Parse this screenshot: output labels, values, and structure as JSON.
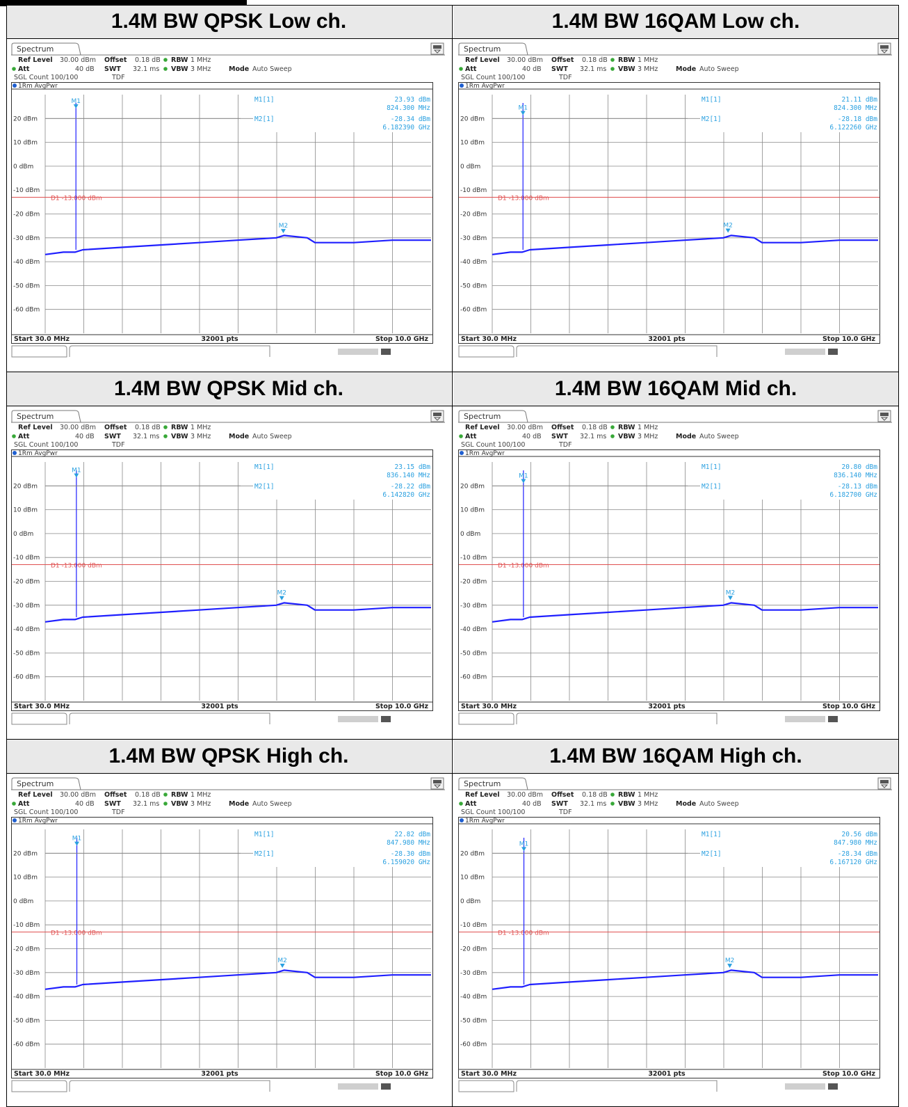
{
  "common": {
    "tab_label": "Spectrum",
    "ref_level_label": "Ref Level",
    "ref_level_value": "30.00 dBm",
    "offset_label": "Offset",
    "offset_value": "0.18 dB",
    "rbw_label": "RBW",
    "rbw_value": "1 MHz",
    "att_label": "Att",
    "att_value": "40 dB",
    "swt_label": "SWT",
    "swt_value": "32.1 ms",
    "vbw_label": "VBW",
    "vbw_value": "3 MHz",
    "mode_label": "Mode",
    "mode_value": "Auto Sweep",
    "sgl_count": "SGL Count 100/100",
    "tdf": "TDF",
    "trace_label": "1Rm AvgPwr",
    "limit_label": "D1 -13.000 dBm",
    "start_label": "Start 30.0 MHz",
    "pts_label": "32001 pts",
    "stop_label": "Stop 10.0 GHz",
    "m1_tag": "M1",
    "m2_tag": "M2",
    "m1_readout_label": "M1[1]",
    "m2_readout_label": "M2[1]",
    "y_tick_labels": [
      "20 dBm",
      "10 dBm",
      "0 dBm",
      "-10 dBm",
      "-20 dBm",
      "-30 dBm",
      "-40 dBm",
      "-50 dBm",
      "-60 dBm"
    ],
    "colors": {
      "trace": "#1f1fff",
      "marker": "#2aa0e0",
      "limit": "#e05050",
      "grid": "#000000"
    }
  },
  "chart_data": [
    {
      "type": "line",
      "title": "1.4M BW QPSK Low ch.",
      "xlim_mhz": [
        30,
        10000
      ],
      "ylim_dbm": [
        -70,
        30
      ],
      "limit_dbm": -13,
      "m1": {
        "freq_mhz": 824.3,
        "level_dbm": 23.93,
        "level_text": "23.93 dBm",
        "freq_text": "824.300 MHz"
      },
      "m2": {
        "freq_mhz": 6182.39,
        "level_dbm": -28.34,
        "level_text": "-28.34 dBm",
        "freq_text": "6.182390 GHz"
      },
      "trace": {
        "x_mhz": [
          30,
          500,
          800,
          1000,
          2000,
          3000,
          4000,
          5000,
          6000,
          6200,
          6800,
          7000,
          8000,
          9000,
          10000
        ],
        "y_dbm": [
          -37,
          -36,
          -36,
          -35,
          -34,
          -33,
          -32,
          -31,
          -30,
          -29,
          -30,
          -32,
          -32,
          -31,
          -31
        ]
      }
    },
    {
      "type": "line",
      "title": "1.4M BW 16QAM Low ch.",
      "xlim_mhz": [
        30,
        10000
      ],
      "ylim_dbm": [
        -70,
        30
      ],
      "limit_dbm": -13,
      "m1": {
        "freq_mhz": 824.3,
        "level_dbm": 21.11,
        "level_text": "21.11 dBm",
        "freq_text": "824.300 MHz"
      },
      "m2": {
        "freq_mhz": 6122.26,
        "level_dbm": -28.18,
        "level_text": "-28.18 dBm",
        "freq_text": "6.122260 GHz"
      },
      "trace": {
        "x_mhz": [
          30,
          500,
          800,
          1000,
          2000,
          3000,
          4000,
          5000,
          6000,
          6200,
          6800,
          7000,
          8000,
          9000,
          10000
        ],
        "y_dbm": [
          -37,
          -36,
          -36,
          -35,
          -34,
          -33,
          -32,
          -31,
          -30,
          -29,
          -30,
          -32,
          -32,
          -31,
          -31
        ]
      }
    },
    {
      "type": "line",
      "title": "1.4M BW QPSK Mid ch.",
      "xlim_mhz": [
        30,
        10000
      ],
      "ylim_dbm": [
        -70,
        30
      ],
      "limit_dbm": -13,
      "m1": {
        "freq_mhz": 836.14,
        "level_dbm": 23.15,
        "level_text": "23.15 dBm",
        "freq_text": "836.140 MHz"
      },
      "m2": {
        "freq_mhz": 6142.82,
        "level_dbm": -28.22,
        "level_text": "-28.22 dBm",
        "freq_text": "6.142820 GHz"
      },
      "trace": {
        "x_mhz": [
          30,
          500,
          800,
          1000,
          2000,
          3000,
          4000,
          5000,
          6000,
          6200,
          6800,
          7000,
          8000,
          9000,
          10000
        ],
        "y_dbm": [
          -37,
          -36,
          -36,
          -35,
          -34,
          -33,
          -32,
          -31,
          -30,
          -29,
          -30,
          -32,
          -32,
          -31,
          -31
        ]
      }
    },
    {
      "type": "line",
      "title": "1.4M BW 16QAM Mid ch.",
      "xlim_mhz": [
        30,
        10000
      ],
      "ylim_dbm": [
        -70,
        30
      ],
      "limit_dbm": -13,
      "m1": {
        "freq_mhz": 836.14,
        "level_dbm": 20.8,
        "level_text": "20.80 dBm",
        "freq_text": "836.140 MHz"
      },
      "m2": {
        "freq_mhz": 6182.7,
        "level_dbm": -28.13,
        "level_text": "-28.13 dBm",
        "freq_text": "6.182700 GHz"
      },
      "trace": {
        "x_mhz": [
          30,
          500,
          800,
          1000,
          2000,
          3000,
          4000,
          5000,
          6000,
          6200,
          6800,
          7000,
          8000,
          9000,
          10000
        ],
        "y_dbm": [
          -37,
          -36,
          -36,
          -35,
          -34,
          -33,
          -32,
          -31,
          -30,
          -29,
          -30,
          -32,
          -32,
          -31,
          -31
        ]
      }
    },
    {
      "type": "line",
      "title": "1.4M BW QPSK High ch.",
      "xlim_mhz": [
        30,
        10000
      ],
      "ylim_dbm": [
        -70,
        30
      ],
      "limit_dbm": -13,
      "m1": {
        "freq_mhz": 847.98,
        "level_dbm": 22.82,
        "level_text": "22.82 dBm",
        "freq_text": "847.980 MHz"
      },
      "m2": {
        "freq_mhz": 6159.02,
        "level_dbm": -28.3,
        "level_text": "-28.30 dBm",
        "freq_text": "6.159020 GHz"
      },
      "trace": {
        "x_mhz": [
          30,
          500,
          800,
          1000,
          2000,
          3000,
          4000,
          5000,
          6000,
          6200,
          6800,
          7000,
          8000,
          9000,
          10000
        ],
        "y_dbm": [
          -37,
          -36,
          -36,
          -35,
          -34,
          -33,
          -32,
          -31,
          -30,
          -29,
          -30,
          -32,
          -32,
          -31,
          -31
        ]
      }
    },
    {
      "type": "line",
      "title": "1.4M BW 16QAM High ch.",
      "xlim_mhz": [
        30,
        10000
      ],
      "ylim_dbm": [
        -70,
        30
      ],
      "limit_dbm": -13,
      "m1": {
        "freq_mhz": 847.98,
        "level_dbm": 20.56,
        "level_text": "20.56 dBm",
        "freq_text": "847.980 MHz"
      },
      "m2": {
        "freq_mhz": 6167.12,
        "level_dbm": -28.34,
        "level_text": "-28.34 dBm",
        "freq_text": "6.167120 GHz"
      },
      "trace": {
        "x_mhz": [
          30,
          500,
          800,
          1000,
          2000,
          3000,
          4000,
          5000,
          6000,
          6200,
          6800,
          7000,
          8000,
          9000,
          10000
        ],
        "y_dbm": [
          -37,
          -36,
          -36,
          -35,
          -34,
          -33,
          -32,
          -31,
          -30,
          -29,
          -30,
          -32,
          -32,
          -31,
          -31
        ]
      }
    }
  ]
}
